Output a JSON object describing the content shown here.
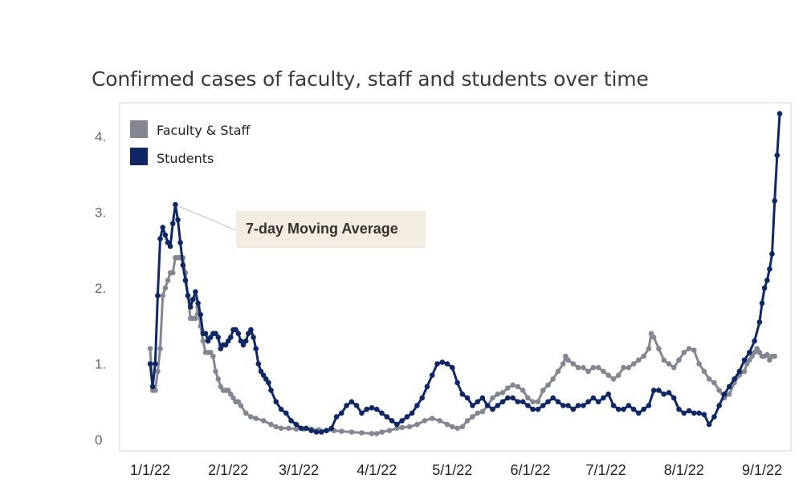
{
  "colors": {
    "faculty": "#828791",
    "students": "#102766",
    "annotation_bg": "#f3ede1"
  },
  "chart_data": {
    "type": "line",
    "title": "Confirmed cases of faculty, staff and students over time",
    "xlabel": "",
    "ylabel": "",
    "x_range_days": [
      0,
      243
    ],
    "ylim": [
      0,
      4.3
    ],
    "y_ticks": [
      {
        "value": 0,
        "label": "0"
      },
      {
        "value": 1,
        "label": "1."
      },
      {
        "value": 2,
        "label": "2."
      },
      {
        "value": 3,
        "label": "3."
      },
      {
        "value": 4,
        "label": "4."
      }
    ],
    "x_ticks": [
      {
        "day": 0,
        "label": "1/1/22"
      },
      {
        "day": 31,
        "label": "2/1/22"
      },
      {
        "day": 59,
        "label": "3/1/22"
      },
      {
        "day": 90,
        "label": "4/1/22"
      },
      {
        "day": 120,
        "label": "5/1/22"
      },
      {
        "day": 151,
        "label": "6/1/22"
      },
      {
        "day": 181,
        "label": "7/1/22"
      },
      {
        "day": 212,
        "label": "8/1/22"
      },
      {
        "day": 243,
        "label": "9/1/22"
      }
    ],
    "legend": {
      "position": "top-left"
    },
    "annotation": {
      "text": "7-day Moving Average",
      "points_to_day": 10
    },
    "series": [
      {
        "name": "Faculty & Staff",
        "color": "#828791",
        "points": [
          [
            0,
            1.2
          ],
          [
            1,
            0.65
          ],
          [
            2,
            0.65
          ],
          [
            3,
            0.9
          ],
          [
            4,
            1.2
          ],
          [
            5,
            1.9
          ],
          [
            6,
            2.0
          ],
          [
            7,
            2.1
          ],
          [
            8,
            2.2
          ],
          [
            9,
            2.2
          ],
          [
            10,
            2.4
          ],
          [
            11,
            2.4
          ],
          [
            12,
            2.4
          ],
          [
            13,
            2.4
          ],
          [
            14,
            2.2
          ],
          [
            15,
            1.9
          ],
          [
            16,
            1.6
          ],
          [
            17,
            1.6
          ],
          [
            18,
            1.6
          ],
          [
            19,
            1.75
          ],
          [
            20,
            1.5
          ],
          [
            21,
            1.3
          ],
          [
            22,
            1.15
          ],
          [
            23,
            1.15
          ],
          [
            24,
            1.15
          ],
          [
            25,
            1.1
          ],
          [
            26,
            0.9
          ],
          [
            27,
            0.8
          ],
          [
            28,
            0.7
          ],
          [
            29,
            0.65
          ],
          [
            30,
            0.65
          ],
          [
            31,
            0.65
          ],
          [
            32,
            0.6
          ],
          [
            33,
            0.55
          ],
          [
            34,
            0.5
          ],
          [
            35,
            0.5
          ],
          [
            36,
            0.45
          ],
          [
            38,
            0.35
          ],
          [
            40,
            0.3
          ],
          [
            42,
            0.28
          ],
          [
            45,
            0.25
          ],
          [
            48,
            0.2
          ],
          [
            50,
            0.17
          ],
          [
            52,
            0.15
          ],
          [
            55,
            0.15
          ],
          [
            58,
            0.14
          ],
          [
            61,
            0.14
          ],
          [
            64,
            0.14
          ],
          [
            67,
            0.13
          ],
          [
            70,
            0.12
          ],
          [
            73,
            0.12
          ],
          [
            76,
            0.11
          ],
          [
            80,
            0.1
          ],
          [
            84,
            0.09
          ],
          [
            88,
            0.08
          ],
          [
            90,
            0.08
          ],
          [
            92,
            0.1
          ],
          [
            95,
            0.12
          ],
          [
            98,
            0.15
          ],
          [
            100,
            0.16
          ],
          [
            103,
            0.17
          ],
          [
            106,
            0.2
          ],
          [
            109,
            0.25
          ],
          [
            112,
            0.28
          ],
          [
            115,
            0.25
          ],
          [
            118,
            0.2
          ],
          [
            120,
            0.17
          ],
          [
            122,
            0.15
          ],
          [
            124,
            0.17
          ],
          [
            126,
            0.25
          ],
          [
            128,
            0.3
          ],
          [
            130,
            0.35
          ],
          [
            132,
            0.37
          ],
          [
            134,
            0.45
          ],
          [
            136,
            0.55
          ],
          [
            138,
            0.6
          ],
          [
            140,
            0.62
          ],
          [
            142,
            0.68
          ],
          [
            144,
            0.72
          ],
          [
            146,
            0.7
          ],
          [
            148,
            0.65
          ],
          [
            150,
            0.55
          ],
          [
            152,
            0.5
          ],
          [
            154,
            0.5
          ],
          [
            156,
            0.65
          ],
          [
            158,
            0.72
          ],
          [
            160,
            0.8
          ],
          [
            162,
            0.9
          ],
          [
            164,
            1.0
          ],
          [
            165,
            1.1
          ],
          [
            166,
            1.05
          ],
          [
            168,
            1.0
          ],
          [
            170,
            0.95
          ],
          [
            172,
            0.95
          ],
          [
            174,
            0.9
          ],
          [
            176,
            0.95
          ],
          [
            178,
            0.95
          ],
          [
            180,
            0.9
          ],
          [
            182,
            0.85
          ],
          [
            184,
            0.8
          ],
          [
            186,
            0.85
          ],
          [
            188,
            0.95
          ],
          [
            190,
            0.95
          ],
          [
            192,
            1.0
          ],
          [
            194,
            1.05
          ],
          [
            196,
            1.1
          ],
          [
            198,
            1.2
          ],
          [
            199,
            1.4
          ],
          [
            200,
            1.35
          ],
          [
            202,
            1.2
          ],
          [
            204,
            1.05
          ],
          [
            206,
            1.0
          ],
          [
            208,
            0.95
          ],
          [
            210,
            1.05
          ],
          [
            212,
            1.15
          ],
          [
            214,
            1.2
          ],
          [
            216,
            1.18
          ],
          [
            218,
            1.0
          ],
          [
            220,
            0.9
          ],
          [
            222,
            0.8
          ],
          [
            224,
            0.75
          ],
          [
            226,
            0.65
          ],
          [
            228,
            0.55
          ],
          [
            230,
            0.6
          ],
          [
            232,
            0.75
          ],
          [
            234,
            0.85
          ],
          [
            236,
            0.9
          ],
          [
            237,
            1.0
          ],
          [
            238,
            1.05
          ],
          [
            239,
            1.1
          ],
          [
            240,
            1.15
          ],
          [
            241,
            1.2
          ],
          [
            242,
            1.15
          ],
          [
            243,
            1.1
          ],
          [
            244,
            1.1
          ],
          [
            245,
            1.12
          ],
          [
            246,
            1.05
          ],
          [
            247,
            1.1
          ],
          [
            248,
            1.1
          ]
        ]
      },
      {
        "name": "Students",
        "color": "#102766",
        "points": [
          [
            0,
            1.0
          ],
          [
            1,
            0.7
          ],
          [
            2,
            1.0
          ],
          [
            3,
            1.9
          ],
          [
            4,
            2.65
          ],
          [
            5,
            2.8
          ],
          [
            6,
            2.7
          ],
          [
            7,
            2.6
          ],
          [
            8,
            2.55
          ],
          [
            9,
            2.85
          ],
          [
            10,
            3.1
          ],
          [
            11,
            2.9
          ],
          [
            12,
            2.6
          ],
          [
            13,
            2.3
          ],
          [
            14,
            2.1
          ],
          [
            15,
            1.9
          ],
          [
            16,
            1.75
          ],
          [
            17,
            1.85
          ],
          [
            18,
            1.95
          ],
          [
            19,
            1.8
          ],
          [
            20,
            1.65
          ],
          [
            21,
            1.4
          ],
          [
            22,
            1.4
          ],
          [
            23,
            1.3
          ],
          [
            24,
            1.35
          ],
          [
            25,
            1.4
          ],
          [
            26,
            1.4
          ],
          [
            27,
            1.35
          ],
          [
            28,
            1.2
          ],
          [
            29,
            1.25
          ],
          [
            30,
            1.25
          ],
          [
            31,
            1.3
          ],
          [
            32,
            1.35
          ],
          [
            33,
            1.45
          ],
          [
            34,
            1.45
          ],
          [
            35,
            1.4
          ],
          [
            36,
            1.3
          ],
          [
            37,
            1.25
          ],
          [
            38,
            1.3
          ],
          [
            39,
            1.4
          ],
          [
            40,
            1.45
          ],
          [
            41,
            1.35
          ],
          [
            42,
            1.2
          ],
          [
            43,
            1.0
          ],
          [
            44,
            0.9
          ],
          [
            45,
            0.85
          ],
          [
            46,
            0.8
          ],
          [
            47,
            0.75
          ],
          [
            48,
            0.65
          ],
          [
            50,
            0.5
          ],
          [
            52,
            0.4
          ],
          [
            54,
            0.35
          ],
          [
            56,
            0.25
          ],
          [
            58,
            0.2
          ],
          [
            60,
            0.15
          ],
          [
            62,
            0.15
          ],
          [
            64,
            0.12
          ],
          [
            66,
            0.1
          ],
          [
            68,
            0.1
          ],
          [
            70,
            0.12
          ],
          [
            72,
            0.15
          ],
          [
            74,
            0.3
          ],
          [
            76,
            0.35
          ],
          [
            78,
            0.45
          ],
          [
            80,
            0.5
          ],
          [
            82,
            0.45
          ],
          [
            84,
            0.35
          ],
          [
            86,
            0.4
          ],
          [
            88,
            0.42
          ],
          [
            90,
            0.4
          ],
          [
            92,
            0.35
          ],
          [
            94,
            0.3
          ],
          [
            96,
            0.25
          ],
          [
            98,
            0.2
          ],
          [
            100,
            0.25
          ],
          [
            102,
            0.3
          ],
          [
            104,
            0.35
          ],
          [
            106,
            0.45
          ],
          [
            108,
            0.55
          ],
          [
            110,
            0.7
          ],
          [
            112,
            0.85
          ],
          [
            114,
            1.0
          ],
          [
            116,
            1.02
          ],
          [
            118,
            1.0
          ],
          [
            120,
            0.95
          ],
          [
            122,
            0.75
          ],
          [
            124,
            0.6
          ],
          [
            126,
            0.55
          ],
          [
            128,
            0.45
          ],
          [
            130,
            0.5
          ],
          [
            132,
            0.55
          ],
          [
            134,
            0.45
          ],
          [
            136,
            0.4
          ],
          [
            138,
            0.45
          ],
          [
            140,
            0.5
          ],
          [
            142,
            0.55
          ],
          [
            144,
            0.55
          ],
          [
            146,
            0.5
          ],
          [
            148,
            0.5
          ],
          [
            150,
            0.45
          ],
          [
            152,
            0.4
          ],
          [
            154,
            0.4
          ],
          [
            156,
            0.45
          ],
          [
            158,
            0.5
          ],
          [
            160,
            0.55
          ],
          [
            162,
            0.5
          ],
          [
            164,
            0.45
          ],
          [
            166,
            0.45
          ],
          [
            168,
            0.4
          ],
          [
            170,
            0.45
          ],
          [
            172,
            0.45
          ],
          [
            174,
            0.5
          ],
          [
            176,
            0.55
          ],
          [
            178,
            0.5
          ],
          [
            180,
            0.55
          ],
          [
            182,
            0.6
          ],
          [
            184,
            0.45
          ],
          [
            186,
            0.4
          ],
          [
            188,
            0.4
          ],
          [
            190,
            0.45
          ],
          [
            192,
            0.4
          ],
          [
            194,
            0.35
          ],
          [
            196,
            0.4
          ],
          [
            198,
            0.45
          ],
          [
            200,
            0.65
          ],
          [
            202,
            0.65
          ],
          [
            204,
            0.6
          ],
          [
            206,
            0.62
          ],
          [
            208,
            0.55
          ],
          [
            210,
            0.4
          ],
          [
            212,
            0.35
          ],
          [
            214,
            0.38
          ],
          [
            216,
            0.35
          ],
          [
            218,
            0.35
          ],
          [
            220,
            0.33
          ],
          [
            222,
            0.2
          ],
          [
            224,
            0.3
          ],
          [
            226,
            0.45
          ],
          [
            228,
            0.6
          ],
          [
            230,
            0.7
          ],
          [
            232,
            0.8
          ],
          [
            234,
            0.9
          ],
          [
            236,
            1.05
          ],
          [
            238,
            1.15
          ],
          [
            240,
            1.3
          ],
          [
            242,
            1.55
          ],
          [
            243,
            1.8
          ],
          [
            244,
            2.0
          ],
          [
            245,
            2.1
          ],
          [
            246,
            2.25
          ],
          [
            247,
            2.45
          ],
          [
            248,
            3.15
          ],
          [
            249,
            3.75
          ],
          [
            250,
            4.3
          ]
        ]
      }
    ]
  }
}
